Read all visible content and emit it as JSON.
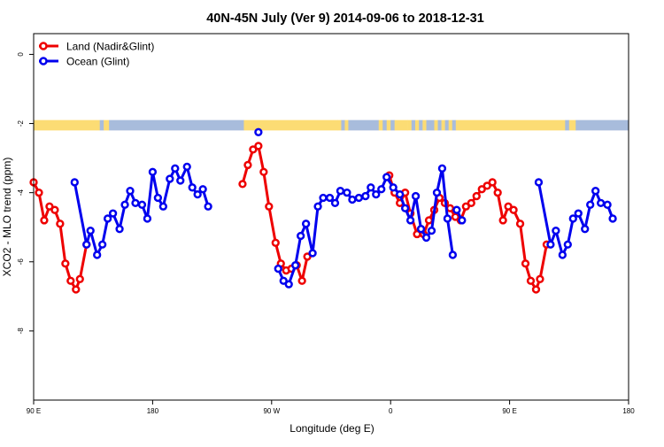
{
  "chart_data": {
    "type": "line",
    "title": "40N-45N July (Ver 9)   2014-09-06 to 2018-12-31",
    "xlabel": "Longitude (deg E)",
    "ylabel": "XCO2 - MLO trend (ppm)",
    "xlim": [
      90,
      540
    ],
    "ylim": [
      -10,
      0.6
    ],
    "xticks": [
      {
        "value": 90,
        "label": "90 E"
      },
      {
        "value": 180,
        "label": "180"
      },
      {
        "value": 270,
        "label": "90 W"
      },
      {
        "value": 360,
        "label": "0"
      },
      {
        "value": 450,
        "label": "90 E"
      },
      {
        "value": 540,
        "label": "180"
      }
    ],
    "yticks": [
      {
        "value": 0,
        "label": "0"
      },
      {
        "value": -2,
        "label": "-2"
      },
      {
        "value": -4,
        "label": "-4"
      },
      {
        "value": -6,
        "label": "-6"
      },
      {
        "value": -8,
        "label": "-8"
      }
    ],
    "legend": {
      "placement": "top-left"
    },
    "land_ocean_strip": {
      "y_range": [
        -2.2,
        -1.9
      ],
      "land_color": "#fcdc74",
      "ocean_color": "#a8bcdc",
      "segments": [
        {
          "from": 90,
          "to": 137,
          "kind": "land"
        },
        {
          "from": 137,
          "to": 143,
          "kind": "mixed"
        },
        {
          "from": 143,
          "to": 147,
          "kind": "land"
        },
        {
          "from": 147,
          "to": 249,
          "kind": "ocean"
        },
        {
          "from": 249,
          "to": 320,
          "kind": "land"
        },
        {
          "from": 320,
          "to": 328,
          "kind": "mixed"
        },
        {
          "from": 328,
          "to": 351,
          "kind": "ocean"
        },
        {
          "from": 351,
          "to": 363,
          "kind": "mixed"
        },
        {
          "from": 363,
          "to": 373,
          "kind": "land"
        },
        {
          "from": 373,
          "to": 387,
          "kind": "mixed"
        },
        {
          "from": 387,
          "to": 393,
          "kind": "ocean"
        },
        {
          "from": 393,
          "to": 412,
          "kind": "mixed"
        },
        {
          "from": 412,
          "to": 489,
          "kind": "land"
        },
        {
          "from": 489,
          "to": 495,
          "kind": "mixed"
        },
        {
          "from": 495,
          "to": 500,
          "kind": "land"
        },
        {
          "from": 500,
          "to": 540,
          "kind": "ocean"
        }
      ]
    },
    "series": [
      {
        "name": "Land (Nadir&Glint)",
        "color": "#ee0000",
        "segments": [
          [
            [
              90,
              -3.7
            ],
            [
              94,
              -4.0
            ],
            [
              98,
              -4.8
            ],
            [
              102,
              -4.4
            ],
            [
              106,
              -4.5
            ],
            [
              110,
              -4.9
            ],
            [
              114,
              -6.05
            ],
            [
              118,
              -6.55
            ],
            [
              122,
              -6.8
            ],
            [
              125,
              -6.5
            ],
            [
              130,
              -5.5
            ]
          ],
          [
            [
              248,
              -3.75
            ],
            [
              252,
              -3.2
            ],
            [
              256,
              -2.75
            ],
            [
              260,
              -2.65
            ],
            [
              264,
              -3.4
            ],
            [
              268,
              -4.4
            ],
            [
              273,
              -5.45
            ],
            [
              277,
              -6.05
            ],
            [
              281,
              -6.25
            ],
            [
              285,
              -6.2
            ],
            [
              289,
              -6.1
            ],
            [
              293,
              -6.55
            ],
            [
              297,
              -5.85
            ]
          ],
          [
            [
              359,
              -3.5
            ],
            [
              363,
              -4.0
            ],
            [
              367,
              -4.3
            ],
            [
              371,
              -4.0
            ],
            [
              375,
              -4.6
            ],
            [
              380,
              -5.2
            ],
            [
              385,
              -5.2
            ],
            [
              389,
              -4.8
            ],
            [
              393,
              -4.5
            ],
            [
              397,
              -4.15
            ],
            [
              401,
              -4.3
            ],
            [
              405,
              -4.45
            ],
            [
              409,
              -4.7
            ],
            [
              413,
              -4.8
            ],
            [
              417,
              -4.4
            ],
            [
              421,
              -4.3
            ],
            [
              425,
              -4.1
            ],
            [
              429,
              -3.9
            ],
            [
              433,
              -3.8
            ],
            [
              437,
              -3.7
            ],
            [
              441,
              -4.0
            ],
            [
              445,
              -4.8
            ],
            [
              449,
              -4.4
            ],
            [
              453,
              -4.5
            ],
            [
              458,
              -4.9
            ],
            [
              462,
              -6.05
            ],
            [
              466,
              -6.55
            ],
            [
              470,
              -6.8
            ],
            [
              473,
              -6.5
            ],
            [
              478,
              -5.5
            ]
          ]
        ]
      },
      {
        "name": "Ocean (Glint)",
        "color": "#0000ee",
        "segments": [
          [
            [
              121,
              -3.7
            ],
            [
              130,
              -5.5
            ],
            [
              133,
              -5.1
            ],
            [
              138,
              -5.8
            ],
            [
              142,
              -5.5
            ],
            [
              146,
              -4.75
            ],
            [
              150,
              -4.6
            ],
            [
              155,
              -5.05
            ],
            [
              159,
              -4.35
            ],
            [
              163,
              -3.95
            ],
            [
              167,
              -4.3
            ],
            [
              172,
              -4.35
            ],
            [
              176,
              -4.75
            ],
            [
              180,
              -3.4
            ],
            [
              184,
              -4.15
            ],
            [
              188,
              -4.4
            ],
            [
              193,
              -3.6
            ],
            [
              197,
              -3.3
            ],
            [
              201,
              -3.65
            ],
            [
              206,
              -3.25
            ],
            [
              210,
              -3.85
            ],
            [
              214,
              -4.05
            ],
            [
              218,
              -3.9
            ],
            [
              222,
              -4.4
            ]
          ],
          [
            [
              260,
              -2.25
            ]
          ],
          [
            [
              275,
              -6.2
            ],
            [
              279,
              -6.55
            ],
            [
              283,
              -6.65
            ],
            [
              288,
              -6.1
            ],
            [
              292,
              -5.25
            ],
            [
              296,
              -4.9
            ],
            [
              301,
              -5.75
            ],
            [
              305,
              -4.4
            ],
            [
              309,
              -4.15
            ],
            [
              314,
              -4.15
            ],
            [
              318,
              -4.3
            ],
            [
              322,
              -3.95
            ],
            [
              327,
              -4.0
            ],
            [
              331,
              -4.2
            ],
            [
              336,
              -4.15
            ],
            [
              341,
              -4.1
            ],
            [
              345,
              -3.85
            ],
            [
              349,
              -4.05
            ],
            [
              353,
              -3.9
            ],
            [
              357,
              -3.55
            ],
            [
              362,
              -3.85
            ],
            [
              367,
              -4.05
            ],
            [
              371,
              -4.45
            ],
            [
              375,
              -4.8
            ],
            [
              379,
              -4.1
            ],
            [
              383,
              -5.05
            ],
            [
              387,
              -5.3
            ],
            [
              391,
              -5.1
            ],
            [
              395,
              -4.0
            ],
            [
              399,
              -3.3
            ],
            [
              403,
              -4.75
            ],
            [
              407,
              -5.8
            ]
          ],
          [
            [
              410,
              -4.5
            ],
            [
              414,
              -4.8
            ]
          ],
          [
            [
              472,
              -3.7
            ],
            [
              481,
              -5.5
            ],
            [
              485,
              -5.1
            ],
            [
              490,
              -5.8
            ],
            [
              494,
              -5.5
            ],
            [
              498,
              -4.75
            ],
            [
              502,
              -4.6
            ],
            [
              507,
              -5.05
            ],
            [
              511,
              -4.35
            ],
            [
              515,
              -3.95
            ],
            [
              519,
              -4.3
            ],
            [
              524,
              -4.35
            ],
            [
              528,
              -4.75
            ]
          ]
        ]
      }
    ]
  }
}
